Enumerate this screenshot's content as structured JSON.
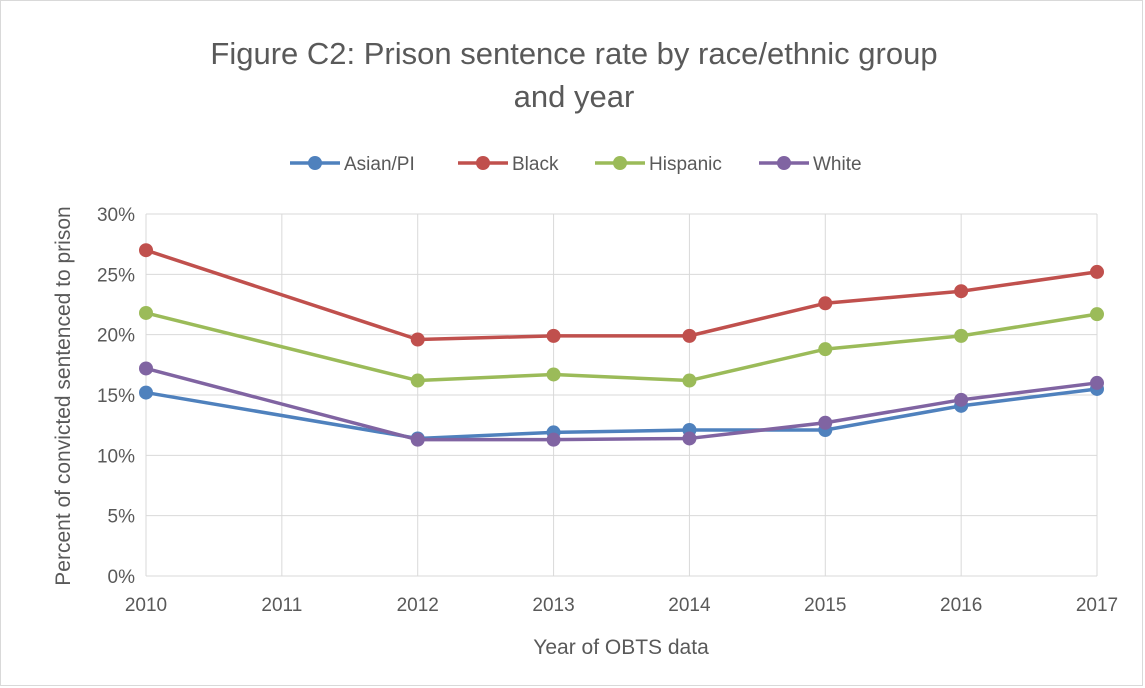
{
  "chart_data": {
    "type": "line",
    "title_lines": [
      "Figure C2: Prison sentence rate by race/ethnic group",
      "and year"
    ],
    "xlabel": "Year of OBTS data",
    "ylabel": "Percent of convicted sentenced to prison",
    "x": [
      2010,
      2012,
      2013,
      2014,
      2015,
      2016,
      2017
    ],
    "x_ticks": [
      "2010",
      "2011",
      "2012",
      "2013",
      "2014",
      "2015",
      "2016",
      "2017"
    ],
    "y_ticks": [
      "0%",
      "5%",
      "10%",
      "15%",
      "20%",
      "25%",
      "30%"
    ],
    "ylim": [
      0,
      30
    ],
    "grid": true,
    "legend_position": "top",
    "series": [
      {
        "name": "Asian/PI",
        "color": "#4f81bd",
        "values": [
          15.2,
          11.4,
          11.9,
          12.1,
          12.1,
          14.1,
          15.5
        ]
      },
      {
        "name": "Black",
        "color": "#c0504d",
        "values": [
          27.0,
          19.6,
          19.9,
          19.9,
          22.6,
          23.6,
          25.2
        ]
      },
      {
        "name": "Hispanic",
        "color": "#9bbb59",
        "values": [
          21.8,
          16.2,
          16.7,
          16.2,
          18.8,
          19.9,
          21.7
        ]
      },
      {
        "name": "White",
        "color": "#8064a2",
        "values": [
          17.2,
          11.3,
          11.3,
          11.4,
          12.7,
          14.6,
          16.0
        ]
      }
    ]
  }
}
